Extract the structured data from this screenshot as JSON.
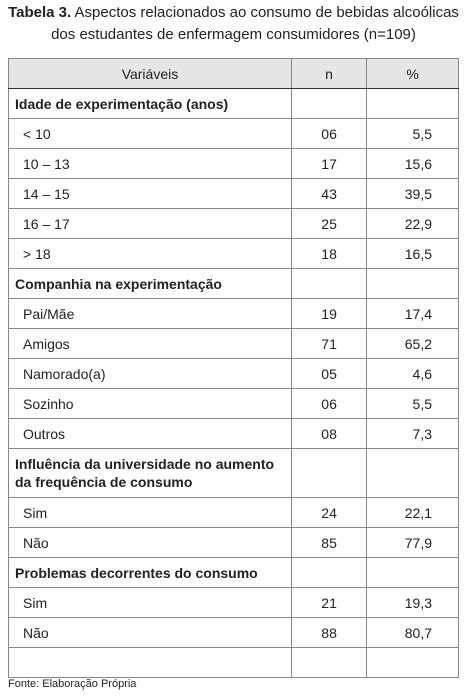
{
  "title": {
    "label": "Tabela 3.",
    "text": "Aspectos relacionados ao consumo de bebidas alcoólicas dos estudantes de enfermagem consumidores (n=109)"
  },
  "table": {
    "header": [
      "Variáveis",
      "n",
      "%"
    ],
    "sections": [
      {
        "title": "Idade de experimentação (anos)",
        "rows": [
          [
            "< 10",
            "06",
            "5,5"
          ],
          [
            "10 – 13",
            "17",
            "15,6"
          ],
          [
            "14 – 15",
            "43",
            "39,5"
          ],
          [
            "16 – 17",
            "25",
            "22,9"
          ],
          [
            "> 18",
            "18",
            "16,5"
          ]
        ]
      },
      {
        "title": "Companhia na experimentação",
        "rows": [
          [
            "Pai/Mãe",
            "19",
            "17,4"
          ],
          [
            "Amigos",
            "71",
            "65,2"
          ],
          [
            "Namorado(a)",
            "05",
            "4,6"
          ],
          [
            "Sozinho",
            "06",
            "5,5"
          ],
          [
            "Outros",
            "08",
            "7,3"
          ]
        ]
      },
      {
        "title": "Influência da universidade no aumento da frequência de consumo",
        "rows": [
          [
            "Sim",
            "24",
            "22,1"
          ],
          [
            "Não",
            "85",
            "77,9"
          ]
        ]
      },
      {
        "title": "Problemas decorrentes do consumo",
        "rows": [
          [
            "Sim",
            "21",
            "19,3"
          ],
          [
            "Não",
            "88",
            "80,7"
          ]
        ]
      }
    ]
  },
  "footer": "Fonte: Elaboração Própria"
}
